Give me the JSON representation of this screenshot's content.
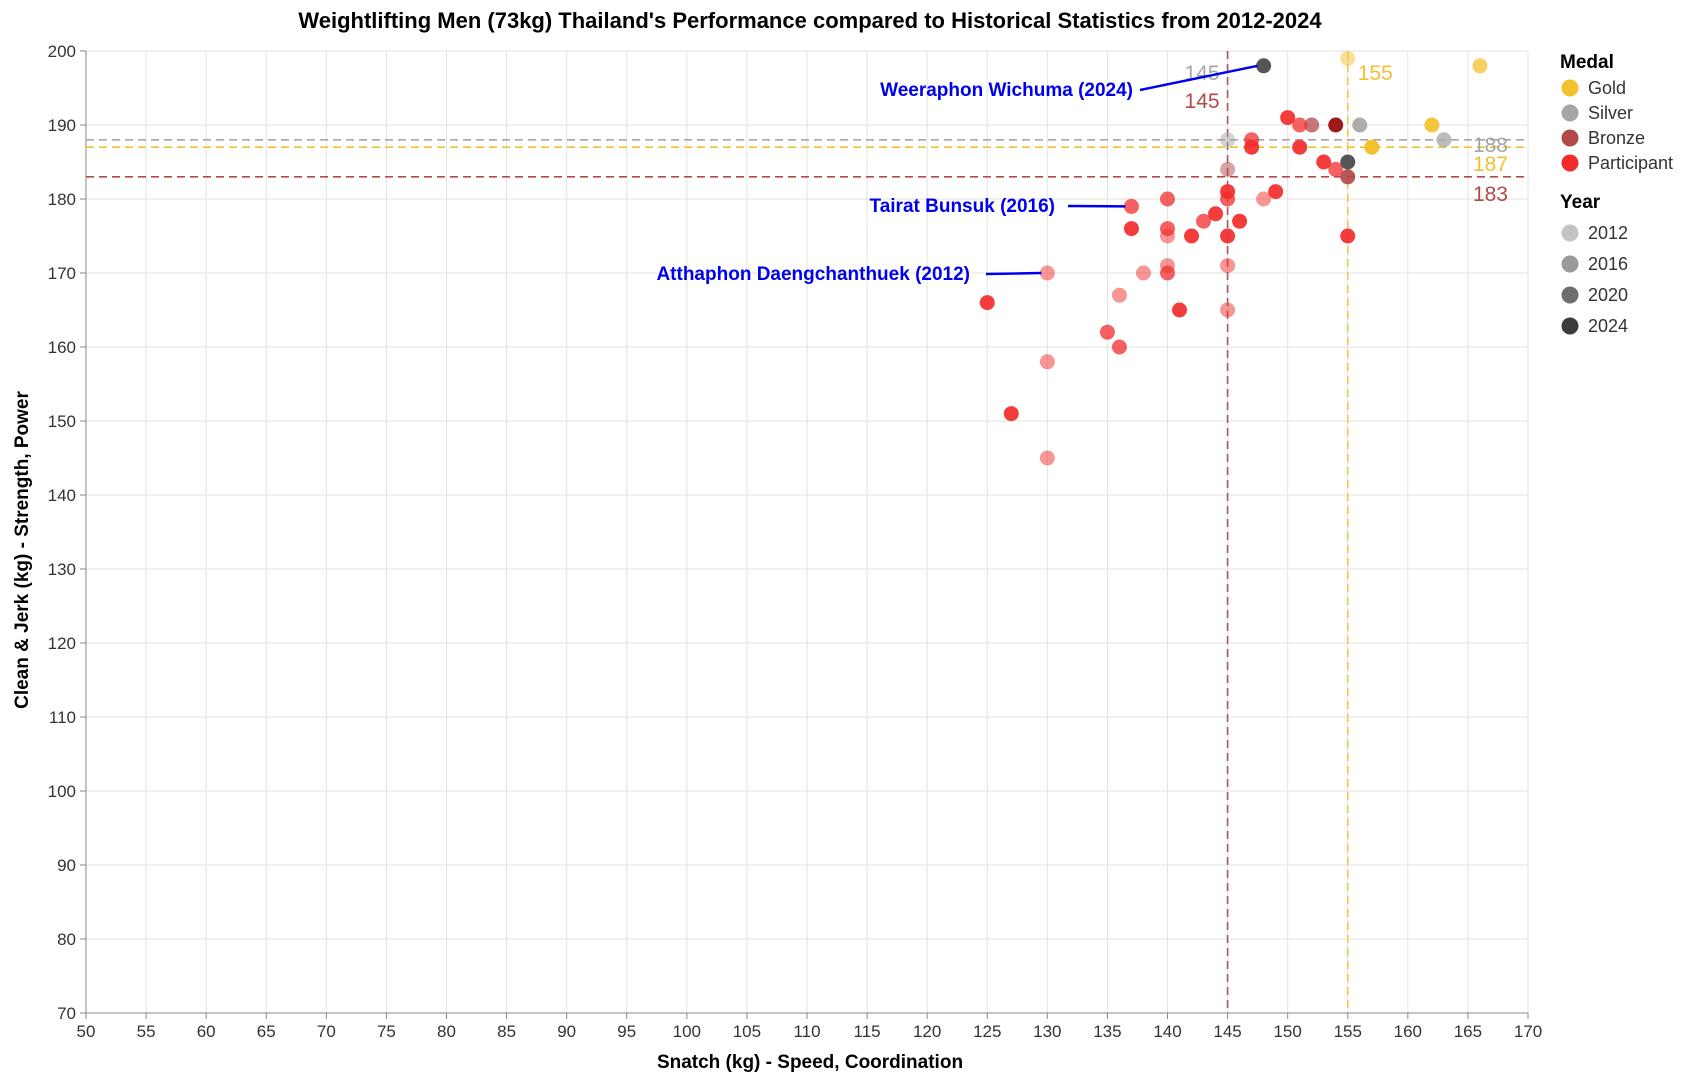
{
  "chart_data": {
    "type": "scatter",
    "title": "Weightlifting Men (73kg) Thailand's Performance compared to Historical Statistics from 2012-2024",
    "xlabel": "Snatch (kg) - Speed, Coordination",
    "ylabel": "Clean & Jerk (kg) - Strength, Power",
    "xlim": [
      50,
      170
    ],
    "ylim": [
      70,
      200
    ],
    "x_ticks": [
      50,
      55,
      60,
      65,
      70,
      75,
      80,
      85,
      90,
      95,
      100,
      105,
      110,
      115,
      120,
      125,
      130,
      135,
      140,
      145,
      150,
      155,
      160,
      165,
      170
    ],
    "y_ticks": [
      70,
      80,
      90,
      100,
      110,
      120,
      130,
      140,
      150,
      160,
      170,
      180,
      190,
      200
    ],
    "grid": true,
    "colors": {
      "Gold": "#f2c12e",
      "Silver": "#a6a6a6",
      "Bronze": "#b34a4a",
      "Participant": "#f22c2c",
      "annotation": "#0000ee"
    },
    "legend": {
      "placement": "right",
      "medal_title": "Medal",
      "medal_entries": [
        {
          "label": "Gold",
          "color": "#f2c12e"
        },
        {
          "label": "Silver",
          "color": "#a6a6a6"
        },
        {
          "label": "Bronze",
          "color": "#b34a4a"
        },
        {
          "label": "Participant",
          "color": "#f22c2c"
        }
      ],
      "year_title": "Year",
      "year_entries": [
        {
          "label": "2012",
          "color": "#c3c3c3"
        },
        {
          "label": "2016",
          "color": "#9a9a9a"
        },
        {
          "label": "2020",
          "color": "#6e6e6e"
        },
        {
          "label": "2024",
          "color": "#3c3c3c"
        }
      ]
    },
    "reference_lines": [
      {
        "axis": "y",
        "value": 188,
        "label": "188",
        "color": "#a6a6a6"
      },
      {
        "axis": "y",
        "value": 187,
        "label": "187",
        "color": "#f2c12e"
      },
      {
        "axis": "y",
        "value": 183,
        "label": "183",
        "color": "#b34a4a"
      },
      {
        "axis": "x",
        "value": 145,
        "label": "145",
        "color": "#a6a6a6"
      },
      {
        "axis": "x",
        "value": 145,
        "label": "145",
        "color": "#b34a4a"
      },
      {
        "axis": "x",
        "value": 155,
        "label": "155",
        "color": "#f2c12e"
      }
    ],
    "annotations": [
      {
        "text": "Weeraphon Wichuma (2024)",
        "point": [
          148,
          198
        ]
      },
      {
        "text": "Tairat Bunsuk (2016)",
        "point": [
          137,
          179
        ]
      },
      {
        "text": "Atthaphon Daengchanthuek (2012)",
        "point": [
          130,
          170
        ]
      }
    ],
    "points": [
      {
        "x": 155,
        "y": 199,
        "medal": "Gold",
        "year": 2012
      },
      {
        "x": 166,
        "y": 198,
        "medal": "Gold",
        "year": 2016
      },
      {
        "x": 162,
        "y": 190,
        "medal": "Gold",
        "year": 2020
      },
      {
        "x": 157,
        "y": 187,
        "medal": "Gold",
        "year": 2024
      },
      {
        "x": 148,
        "y": 198,
        "medal": "Participant",
        "year": 2024
      },
      {
        "x": 156,
        "y": 190,
        "medal": "Silver",
        "year": 2020
      },
      {
        "x": 163,
        "y": 188,
        "medal": "Silver",
        "year": 2016
      },
      {
        "x": 145,
        "y": 188,
        "medal": "Silver",
        "year": 2012
      },
      {
        "x": 152,
        "y": 190,
        "medal": "Bronze",
        "year": 2016
      },
      {
        "x": 154,
        "y": 190,
        "medal": "Bronze",
        "year": 2024
      },
      {
        "x": 155,
        "y": 183,
        "medal": "Bronze",
        "year": 2020
      },
      {
        "x": 145,
        "y": 184,
        "medal": "Bronze",
        "year": 2012
      },
      {
        "x": 150,
        "y": 191,
        "medal": "Participant",
        "year": 2020
      },
      {
        "x": 151,
        "y": 190,
        "medal": "Participant",
        "year": 2016
      },
      {
        "x": 151,
        "y": 187,
        "medal": "Participant",
        "year": 2020
      },
      {
        "x": 147,
        "y": 188,
        "medal": "Participant",
        "year": 2016
      },
      {
        "x": 147,
        "y": 187,
        "medal": "Participant",
        "year": 2020
      },
      {
        "x": 153,
        "y": 185,
        "medal": "Participant",
        "year": 2020
      },
      {
        "x": 154,
        "y": 184,
        "medal": "Participant",
        "year": 2016
      },
      {
        "x": 155,
        "y": 185,
        "medal": "Participant",
        "year": 2024
      },
      {
        "x": 155,
        "y": 175,
        "medal": "Participant",
        "year": 2020
      },
      {
        "x": 149,
        "y": 181,
        "medal": "Participant",
        "year": 2020
      },
      {
        "x": 148,
        "y": 180,
        "medal": "Participant",
        "year": 2012
      },
      {
        "x": 145,
        "y": 181,
        "medal": "Participant",
        "year": 2020
      },
      {
        "x": 145,
        "y": 180,
        "medal": "Participant",
        "year": 2016
      },
      {
        "x": 146,
        "y": 177,
        "medal": "Participant",
        "year": 2020
      },
      {
        "x": 145,
        "y": 175,
        "medal": "Participant",
        "year": 2020
      },
      {
        "x": 144,
        "y": 178,
        "medal": "Participant",
        "year": 2020
      },
      {
        "x": 143,
        "y": 177,
        "medal": "Participant",
        "year": 2016
      },
      {
        "x": 142,
        "y": 175,
        "medal": "Participant",
        "year": 2020
      },
      {
        "x": 140,
        "y": 180,
        "medal": "Participant",
        "year": 2016
      },
      {
        "x": 140,
        "y": 176,
        "medal": "Participant",
        "year": 2016
      },
      {
        "x": 140,
        "y": 175,
        "medal": "Participant",
        "year": 2012
      },
      {
        "x": 140,
        "y": 171,
        "medal": "Participant",
        "year": 2012
      },
      {
        "x": 140,
        "y": 170,
        "medal": "Participant",
        "year": 2016
      },
      {
        "x": 137,
        "y": 179,
        "medal": "Participant",
        "year": 2016
      },
      {
        "x": 137,
        "y": 176,
        "medal": "Participant",
        "year": 2020
      },
      {
        "x": 138,
        "y": 170,
        "medal": "Participant",
        "year": 2012
      },
      {
        "x": 136,
        "y": 167,
        "medal": "Participant",
        "year": 2012
      },
      {
        "x": 141,
        "y": 165,
        "medal": "Participant",
        "year": 2020
      },
      {
        "x": 145,
        "y": 171,
        "medal": "Participant",
        "year": 2012
      },
      {
        "x": 145,
        "y": 165,
        "medal": "Participant",
        "year": 2012
      },
      {
        "x": 130,
        "y": 170,
        "medal": "Participant",
        "year": 2012
      },
      {
        "x": 125,
        "y": 166,
        "medal": "Participant",
        "year": 2020
      },
      {
        "x": 135,
        "y": 162,
        "medal": "Participant",
        "year": 2016
      },
      {
        "x": 136,
        "y": 160,
        "medal": "Participant",
        "year": 2016
      },
      {
        "x": 130,
        "y": 158,
        "medal": "Participant",
        "year": 2012
      },
      {
        "x": 127,
        "y": 151,
        "medal": "Participant",
        "year": 2020
      },
      {
        "x": 130,
        "y": 145,
        "medal": "Participant",
        "year": 2012
      }
    ]
  }
}
